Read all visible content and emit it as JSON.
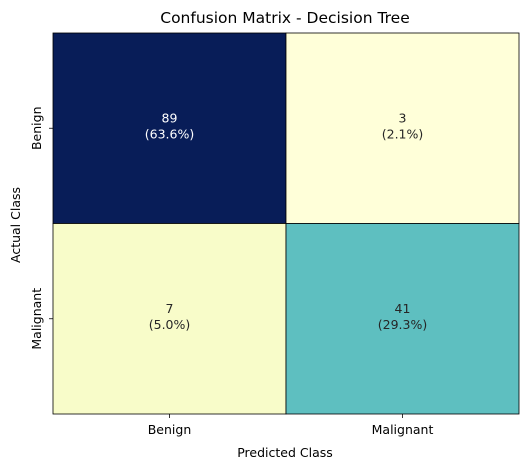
{
  "chart_data": {
    "type": "heatmap",
    "title": "Confusion Matrix - Decision Tree",
    "xlabel": "Predicted Class",
    "ylabel": "Actual Class",
    "x_categories": [
      "Benign",
      "Malignant"
    ],
    "y_categories": [
      "Benign",
      "Malignant"
    ],
    "values": [
      [
        89,
        3
      ],
      [
        7,
        41
      ]
    ],
    "annotations": [
      [
        "89",
        "(63.6%)",
        "3",
        "(2.1%)"
      ],
      [
        "7",
        "(5.0%)",
        "41",
        "(29.3%)"
      ]
    ],
    "cells": [
      {
        "row": 0,
        "col": 0,
        "count": "89",
        "percent": "(63.6%)",
        "color": "#081d58",
        "text_color": "#ffffff"
      },
      {
        "row": 0,
        "col": 1,
        "count": "3",
        "percent": "(2.1%)",
        "color": "#ffffd9",
        "text_color": "#262626"
      },
      {
        "row": 1,
        "col": 0,
        "count": "7",
        "percent": "(5.0%)",
        "color": "#f8fcc9",
        "text_color": "#262626"
      },
      {
        "row": 1,
        "col": 1,
        "count": "41",
        "percent": "(29.3%)",
        "color": "#5ebfc0",
        "text_color": "#262626"
      }
    ],
    "colormap": "YlGnBu",
    "colorbar": false,
    "grid": false
  }
}
